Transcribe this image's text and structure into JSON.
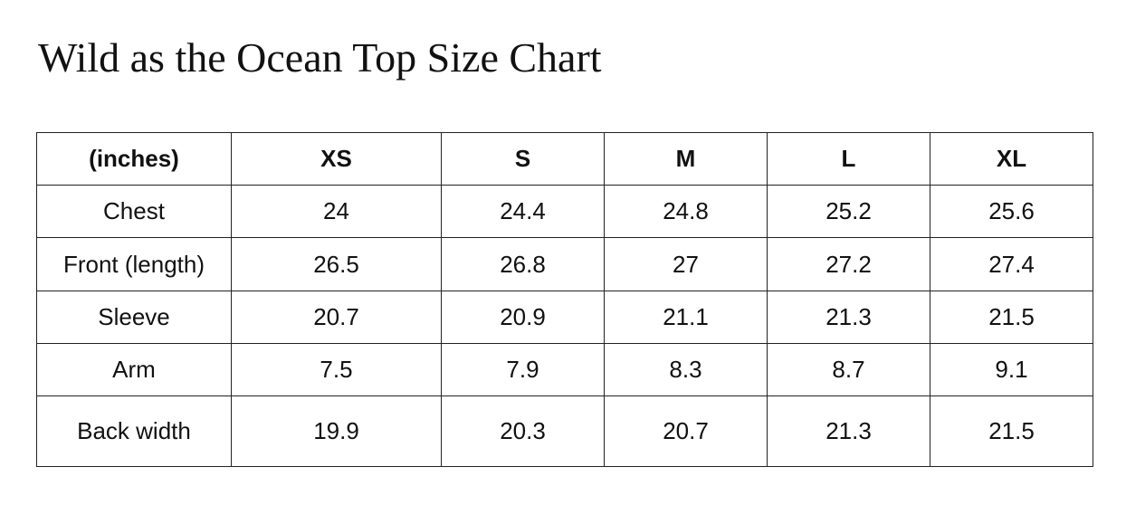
{
  "title": "Wild as the Ocean Top Size Chart",
  "table": {
    "header": [
      "(inches)",
      "XS",
      "S",
      "M",
      "L",
      "XL"
    ],
    "rows": [
      [
        "Chest",
        24,
        24.4,
        24.8,
        25.2,
        25.6
      ],
      [
        "Front (length)",
        26.5,
        26.8,
        27,
        27.2,
        27.4
      ],
      [
        "Sleeve",
        20.7,
        20.9,
        21.1,
        21.3,
        21.5
      ],
      [
        "Arm",
        7.5,
        7.9,
        8.3,
        8.7,
        9.1
      ],
      [
        "Back width",
        19.9,
        20.3,
        20.7,
        21.3,
        21.5
      ]
    ]
  }
}
